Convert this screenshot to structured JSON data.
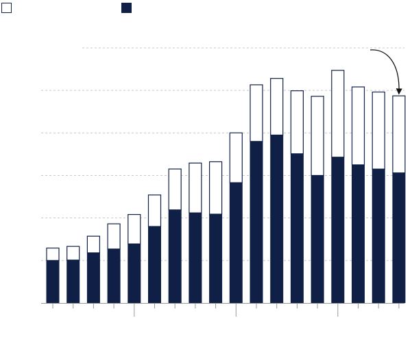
{
  "chart_data": {
    "type": "bar",
    "stacked": true,
    "ylim": [
      0,
      6
    ],
    "grid": true,
    "legend_position": "top-left",
    "colors": {
      "dark": "#0f1f45",
      "light": "#ffffff",
      "outline": "#0f1f45",
      "grid": "#c8c8c8",
      "axis": "#999999"
    },
    "series": [
      {
        "name": "",
        "color": "#ffffff",
        "outlined": true,
        "values": [
          0.3,
          0.33,
          0.4,
          0.6,
          0.7,
          0.75,
          0.97,
          1.18,
          1.24,
          1.18,
          1.34,
          1.34,
          1.49,
          1.87,
          2.05,
          1.84,
          1.82,
          1.82
        ]
      },
      {
        "name": "",
        "color": "#0f1f45",
        "outlined": false,
        "values": [
          1.0,
          1.01,
          1.18,
          1.27,
          1.39,
          1.8,
          2.19,
          2.12,
          2.09,
          2.83,
          3.8,
          3.95,
          3.51,
          3.0,
          3.43,
          3.25,
          3.15,
          3.06
        ]
      }
    ],
    "annotations": [
      {
        "type": "arrow",
        "from_y": 6,
        "to_category_index": 17
      }
    ]
  }
}
